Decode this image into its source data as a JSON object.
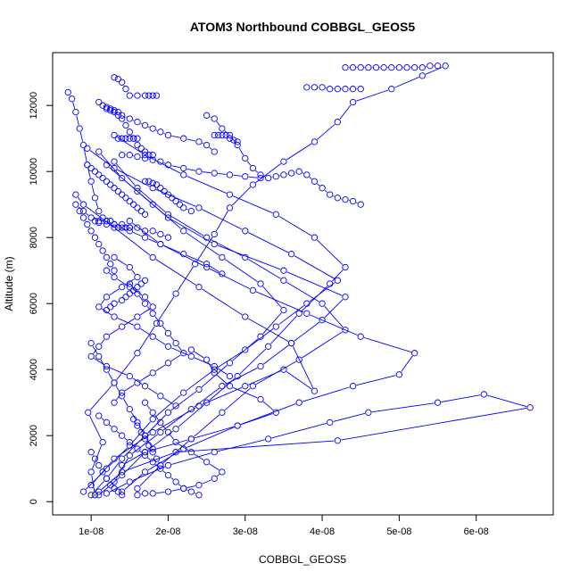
{
  "chart_data": {
    "type": "line",
    "title": "ATOM3 Northbound COBBGL_GEOS5",
    "xlabel": "COBBGL_GEOS5",
    "ylabel": "Altitude (m)",
    "xlim": [
      5e-09,
      7e-08
    ],
    "ylim": [
      -400,
      13600
    ],
    "x_ticks": [
      1e-08,
      2e-08,
      3e-08,
      4e-08,
      5e-08,
      6e-08
    ],
    "x_tick_labels": [
      "1e-08",
      "2e-08",
      "3e-08",
      "4e-08",
      "5e-08",
      "6e-08"
    ],
    "y_ticks": [
      0,
      2000,
      4000,
      6000,
      8000,
      10000,
      12000
    ],
    "y_tick_labels": [
      "0",
      "2000",
      "4000",
      "6000",
      "8000",
      "10000",
      "12000"
    ],
    "grid": false,
    "legend": "none",
    "color": "#0000ff",
    "marker": "open-circle",
    "series": [
      {
        "x": [
          1.05e-08,
          1e-08,
          1.15e-08,
          9.6e-09,
          1.3e-08,
          1.6e-08,
          1.85e-08,
          2.1e-08,
          2.35e-08,
          2.6e-08,
          2.8e-08,
          3.1e-08,
          3.5e-08,
          3.9e-08,
          4.2e-08,
          4.4e-08,
          4.9e-08,
          5.3e-08,
          5.6e-08
        ],
        "y": [
          200,
          900,
          1800,
          2700,
          3600,
          4500,
          5400,
          6300,
          7200,
          8100,
          8900,
          9600,
          10300,
          10900,
          11500,
          12100,
          12500,
          12900,
          13200
        ]
      },
      {
        "x": [
          1.2e-08,
          1.5e-08,
          2e-08,
          2.6e-08,
          3.3e-08,
          4.1e-08,
          4.6e-08,
          5.5e-08,
          6.1e-08,
          6.7e-08,
          4.2e-08,
          2.1e-08,
          1.4e-08,
          1.1e-08
        ],
        "y": [
          250,
          600,
          1100,
          1500,
          1900,
          2400,
          2700,
          3000,
          3250,
          2850,
          1850,
          1500,
          900,
          300
        ]
      },
      {
        "x": [
          1.4e-08,
          1.7e-08,
          2.2e-08,
          2.9e-08,
          3.7e-08,
          4.4e-08,
          5e-08,
          5.2e-08,
          4.5e-08,
          3.8e-08,
          3.1e-08,
          2.5e-08,
          1.9e-08,
          1.5e-08
        ],
        "y": [
          300,
          900,
          1600,
          2300,
          3000,
          3500,
          3850,
          4500,
          5000,
          5700,
          6400,
          7100,
          7800,
          8500
        ]
      },
      {
        "x": [
          1e-08,
          1.3e-08,
          1.8e-08,
          2.4e-08,
          3e-08,
          3.5e-08,
          3.9e-08,
          3.6e-08,
          3e-08,
          2.4e-08,
          1.8e-08,
          1.3e-08,
          9e-09,
          8e-09
        ],
        "y": [
          500,
          1300,
          2100,
          2900,
          3500,
          4000,
          3350,
          4800,
          5600,
          6500,
          7400,
          8300,
          9000,
          9300
        ]
      },
      {
        "x": [
          1.6e-08,
          1.9e-08,
          2.3e-08,
          2.7e-08,
          3.1e-08,
          3.7e-08,
          4.3e-08,
          4e-08,
          3.5e-08,
          3e-08,
          2.5e-08,
          2e-08,
          1.6e-08,
          1.3e-08
        ],
        "y": [
          400,
          1100,
          1900,
          2700,
          3500,
          4300,
          5200,
          6000,
          6700,
          7400,
          8000,
          8700,
          9500,
          10300
        ]
      },
      {
        "x": [
          1.1e-08,
          1.4e-08,
          1.7e-08,
          2.1e-08,
          2.5e-08,
          2.9e-08,
          3.3e-08,
          3.7e-08,
          4.1e-08,
          4.3e-08,
          3.9e-08,
          3.4e-08,
          2.8e-08,
          2.2e-08,
          1.7e-08,
          1.3e-08
        ],
        "y": [
          200,
          800,
          1500,
          2200,
          3000,
          3800,
          4700,
          5700,
          6600,
          7100,
          8000,
          8700,
          9300,
          9900,
          10500,
          11100
        ]
      },
      {
        "x": [
          9e-09,
          1.2e-08,
          1.5e-08,
          1.8e-08,
          2.2e-08,
          2.6e-08,
          3e-08,
          3.4e-08,
          3.8e-08,
          4.2e-08,
          3.6e-08,
          3e-08,
          2.4e-08,
          1.8e-08,
          1.3e-08,
          9.5e-09
        ],
        "y": [
          300,
          1000,
          1700,
          2500,
          3300,
          4000,
          4600,
          5300,
          6000,
          6700,
          7500,
          8200,
          8900,
          9500,
          10100,
          10700
        ]
      },
      {
        "x": [
          1.3e-08,
          1.5e-08,
          1.9e-08,
          2.3e-08,
          2.7e-08,
          3.2e-08,
          3.6e-08,
          4e-08,
          4.3e-08,
          3.5e-08,
          2.6e-08,
          2e-08,
          1.6e-08,
          1.2e-08
        ],
        "y": [
          600,
          1400,
          2100,
          2800,
          3500,
          4100,
          4800,
          5500,
          6200,
          7000,
          7800,
          8600,
          9400,
          10200
        ]
      },
      {
        "x": [
          1e-08,
          1.2e-08,
          1.4e-08,
          1.7e-08,
          2e-08,
          2.4e-08,
          2.8e-08,
          3.2e-08,
          3.5e-08,
          3.2e-08,
          2.7e-08,
          2.2e-08,
          1.8e-08,
          1.4e-08,
          1.1e-08
        ],
        "y": [
          200,
          700,
          1300,
          2000,
          2700,
          3400,
          4200,
          5000,
          5800,
          6600,
          7400,
          8200,
          9000,
          9800,
          10600
        ]
      },
      {
        "x": [
          7e-09,
          7.5e-09,
          8e-09,
          8.5e-09,
          9e-09,
          9.5e-09,
          1e-08,
          1.05e-08,
          1.1e-08,
          1.15e-08,
          1.2e-08,
          1.25e-08,
          1.3e-08,
          1.35e-08,
          1.4e-08,
          1.45e-08,
          1.5e-08
        ],
        "y": [
          12400,
          12200,
          11800,
          11300,
          10800,
          10200,
          9700,
          9200,
          8800,
          8600,
          8500,
          8500,
          8400,
          8300,
          8300,
          8300,
          8300
        ]
      },
      {
        "x": [
          8e-09,
          9e-09,
          1e-08,
          1.1e-08,
          1.2e-08,
          1.3e-08,
          1.4e-08,
          1.5e-08,
          1.6e-08,
          1.7e-08,
          1.8e-08,
          1.9e-08,
          2e-08
        ],
        "y": [
          9000,
          8800,
          8600,
          8500,
          8500,
          8400,
          8400,
          8300,
          8300,
          8200,
          8200,
          8100,
          8000
        ]
      },
      {
        "x": [
          1.3e-08,
          1.35e-08,
          1.4e-08,
          1.45e-08,
          1.5e-08,
          1.6e-08,
          1.7e-08,
          1.75e-08,
          1.8e-08,
          1.85e-08
        ],
        "y": [
          12850,
          12800,
          12700,
          12500,
          12300,
          12300,
          12300,
          12300,
          12300,
          12300
        ]
      },
      {
        "x": [
          1.2e-08,
          1.25e-08,
          1.3e-08,
          1.35e-08,
          1.4e-08,
          1.5e-08,
          1.6e-08,
          1.7e-08,
          1.8e-08,
          1.9e-08,
          2e-08,
          2.2e-08,
          2.4e-08,
          2.5e-08,
          2.6e-08
        ],
        "y": [
          11950,
          11900,
          11850,
          11800,
          11700,
          11600,
          11500,
          11400,
          11300,
          11200,
          11100,
          11000,
          10900,
          10800,
          10600
        ]
      },
      {
        "x": [
          2.5e-08,
          2.6e-08,
          2.7e-08,
          2.8e-08,
          2.9e-08,
          3e-08,
          3.1e-08,
          3.2e-08,
          3.3e-08,
          3.4e-08,
          3.5e-08,
          3.6e-08,
          3.7e-08,
          3.8e-08,
          3.9e-08,
          4e-08,
          4.1e-08,
          4.2e-08,
          4.3e-08,
          4.4e-08,
          4.5e-08
        ],
        "y": [
          11700,
          11600,
          11300,
          11100,
          10800,
          10400,
          10100,
          9900,
          9800,
          9850,
          9900,
          9950,
          10000,
          9900,
          9700,
          9500,
          9300,
          9200,
          9150,
          9100,
          9000
        ]
      },
      {
        "x": [
          1.4e-08,
          1.5e-08,
          1.6e-08,
          1.7e-08,
          1.8e-08,
          1.9e-08,
          2e-08,
          2.2e-08,
          2.4e-08,
          2.6e-08,
          2.8e-08,
          3e-08,
          3.2e-08
        ],
        "y": [
          10500,
          10500,
          10450,
          10400,
          10350,
          10300,
          10200,
          10100,
          10000,
          9950,
          9900,
          9850,
          9800
        ]
      },
      {
        "x": [
          1.1e-08,
          1.15e-08,
          1.2e-08,
          1.25e-08,
          1.3e-08,
          1.35e-08,
          1.4e-08,
          1.45e-08,
          1.5e-08,
          1.55e-08,
          1.6e-08,
          1.65e-08,
          1.7e-08,
          1.75e-08,
          1.8e-08
        ],
        "y": [
          12100,
          12000,
          11900,
          11850,
          11800,
          11700,
          11600,
          11400,
          11200,
          11000,
          10800,
          10700,
          10600,
          10500,
          10500
        ]
      },
      {
        "x": [
          9.5e-09,
          1e-08,
          1.05e-08,
          1.1e-08,
          1.15e-08,
          1.2e-08,
          1.25e-08,
          1.3e-08,
          1.35e-08,
          1.4e-08,
          1.45e-08,
          1.5e-08,
          1.55e-08,
          1.6e-08,
          1.65e-08,
          1.7e-08
        ],
        "y": [
          10200,
          10100,
          10000,
          9900,
          9800,
          9700,
          9600,
          9500,
          9400,
          9300,
          9200,
          9100,
          9000,
          8900,
          8800,
          8700
        ]
      },
      {
        "x": [
          2.6e-08,
          2.65e-08,
          2.7e-08,
          2.75e-08,
          2.8e-08,
          2.85e-08,
          2.9e-08
        ],
        "y": [
          11100,
          11100,
          11100,
          11100,
          11000,
          10950,
          10900
        ]
      },
      {
        "x": [
          1.35e-08,
          1.4e-08,
          1.45e-08,
          1.5e-08,
          1.55e-08,
          1.6e-08
        ],
        "y": [
          11000,
          11000,
          11000,
          11000,
          11000,
          11000
        ]
      },
      {
        "x": [
          1.7e-08,
          1.75e-08,
          1.8e-08,
          1.85e-08,
          1.9e-08,
          1.95e-08,
          2e-08,
          2.05e-08,
          2.1e-08,
          2.15e-08,
          2.2e-08,
          2.3e-08
        ],
        "y": [
          9700,
          9700,
          9650,
          9600,
          9500,
          9400,
          9300,
          9200,
          9100,
          9000,
          8900,
          8800
        ]
      },
      {
        "x": [
          1.05e-08,
          1.1e-08,
          1.2e-08,
          1.35e-08,
          1.5e-08,
          1.7e-08,
          1.9e-08,
          2.2e-08,
          2.5e-08,
          2.7e-08
        ],
        "y": [
          8500,
          8450,
          8400,
          8300,
          8200,
          8000,
          7800,
          7500,
          7200,
          6900
        ]
      },
      {
        "x": [
          1.2e-08,
          1.3e-08,
          1.5e-08,
          1.7e-08,
          1.8e-08,
          1.6e-08,
          1.4e-08,
          1.2e-08,
          1.1e-08,
          1e-08,
          1.2e-08,
          1.5e-08,
          1.7e-08,
          1.9e-08,
          2.1e-08
        ],
        "y": [
          7000,
          6800,
          6500,
          6200,
          5900,
          5600,
          5300,
          5000,
          4700,
          4400,
          4100,
          3800,
          3500,
          3200,
          2900
        ]
      },
      {
        "x": [
          1.3e-08,
          1.5e-08,
          1.6e-08,
          1.4e-08,
          1.2e-08,
          1.1e-08,
          1.3e-08,
          1.6e-08,
          1.8e-08,
          2e-08,
          2.3e-08,
          2.6e-08,
          2.8e-08
        ],
        "y": [
          7400,
          7100,
          6800,
          6500,
          6200,
          5900,
          5600,
          5300,
          5000,
          4700,
          4400,
          4100,
          3800
        ]
      },
      {
        "x": [
          1.5e-08,
          1.6e-08,
          1.7e-08,
          1.8e-08,
          1.9e-08,
          2e-08,
          2.1e-08,
          2.2e-08,
          2e-08,
          1.8e-08,
          1.6e-08,
          1.4e-08,
          1.3e-08
        ],
        "y": [
          6600,
          6300,
          6000,
          5700,
          5400,
          5100,
          4800,
          4500,
          4200,
          3900,
          3600,
          3300,
          3000
        ]
      },
      {
        "x": [
          1.7e-08,
          1.8e-08,
          1.9e-08,
          2e-08,
          2.1e-08,
          2.3e-08,
          2.5e-08,
          2.7e-08,
          2.6e-08,
          2.4e-08,
          2.2e-08,
          2e-08,
          1.8e-08,
          1.7e-08,
          1.6e-08
        ],
        "y": [
          3000,
          2700,
          2400,
          2100,
          1800,
          1500,
          1200,
          900,
          700,
          500,
          400,
          300,
          250,
          250,
          200
        ]
      },
      {
        "x": [
          1.1e-08,
          1.2e-08,
          1.3e-08,
          1.4e-08,
          1.5e-08,
          1.6e-08,
          1.7e-08,
          1.8e-08,
          1.9e-08,
          2e-08,
          2.1e-08,
          2.2e-08,
          2.3e-08,
          2.4e-08
        ],
        "y": [
          2600,
          2400,
          2200,
          2000,
          1800,
          1600,
          1400,
          1200,
          1000,
          800,
          600,
          400,
          300,
          200
        ]
      },
      {
        "x": [
          1e-08,
          1.1e-08,
          1.2e-08,
          1.3e-08,
          1.4e-08,
          1.5e-08,
          1.6e-08,
          1.7e-08,
          1.8e-08
        ],
        "y": [
          4800,
          4400,
          4000,
          3600,
          3200,
          2800,
          2400,
          2000,
          1600
        ]
      },
      {
        "x": [
          8.5e-09,
          9e-09,
          9.5e-09,
          1e-08,
          1.05e-08,
          1.1e-08,
          1.15e-08,
          1.2e-08,
          1.25e-08,
          1.3e-08
        ],
        "y": [
          8800,
          8600,
          8400,
          8200,
          8000,
          7800,
          7600,
          7400,
          7200,
          7000
        ]
      },
      {
        "x": [
          4.3e-08,
          4.4e-08,
          4.5e-08,
          4.6e-08,
          4.7e-08,
          4.8e-08,
          4.9e-08,
          5e-08,
          5.1e-08,
          5.2e-08,
          5.3e-08,
          5.4e-08,
          5.5e-08
        ],
        "y": [
          13150,
          13150,
          13150,
          13150,
          13150,
          13150,
          13150,
          13150,
          13150,
          13150,
          13150,
          13200,
          13200
        ]
      },
      {
        "x": [
          3.8e-08,
          3.9e-08,
          4e-08,
          4.1e-08,
          4.2e-08,
          4.3e-08,
          4.4e-08,
          4.5e-08
        ],
        "y": [
          12550,
          12550,
          12550,
          12500,
          12500,
          12500,
          12500,
          12500
        ]
      },
      {
        "x": [
          2.3e-08,
          2.5e-08,
          2.6e-08,
          2.8e-08,
          3.2e-08,
          3.4e-08,
          2.9e-08,
          2.3e-08,
          1.7e-08,
          1.4e-08
        ],
        "y": [
          4600,
          4300,
          3900,
          3500,
          3100,
          2700,
          2300,
          1900,
          1500,
          1100
        ]
      },
      {
        "x": [
          1.2e-08,
          1.25e-08,
          1.3e-08,
          1.4e-08,
          1.45e-08,
          1.5e-08,
          1.55e-08,
          1.6e-08,
          1.65e-08,
          1.7e-08
        ],
        "y": [
          5800,
          5900,
          6000,
          6100,
          6200,
          6300,
          6400,
          6500,
          6600,
          6700
        ]
      },
      {
        "x": [
          1.55e-08,
          1.6e-08,
          1.65e-08,
          1.7e-08,
          1.75e-08,
          1.8e-08,
          1.85e-08,
          1.9e-08
        ],
        "y": [
          2500,
          2300,
          2100,
          1900,
          1700,
          1500,
          1300,
          1100
        ]
      },
      {
        "x": [
          1e-08,
          1.05e-08,
          1.1e-08,
          1.15e-08,
          1.2e-08,
          1.25e-08,
          1.3e-08,
          1.35e-08,
          1.4e-08
        ],
        "y": [
          1500,
          1300,
          1100,
          900,
          700,
          500,
          400,
          300,
          200
        ]
      }
    ]
  }
}
